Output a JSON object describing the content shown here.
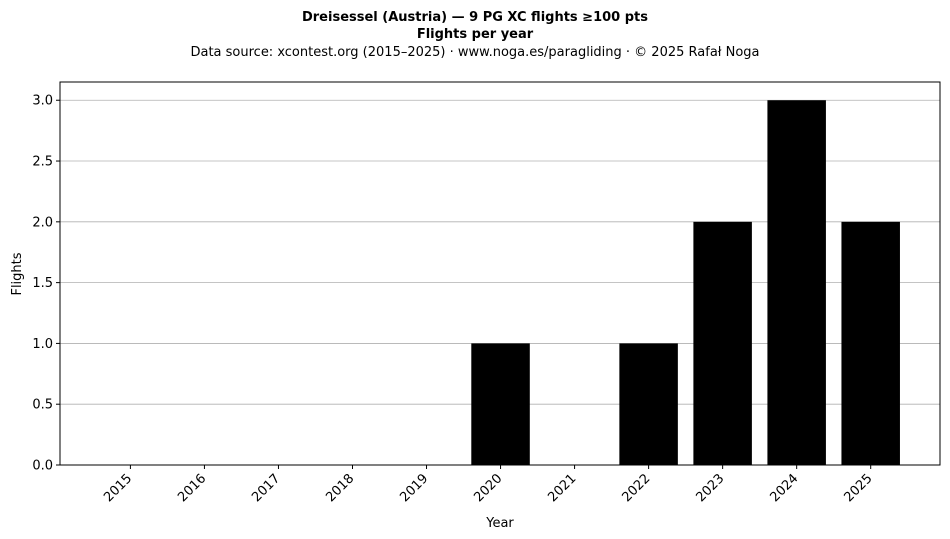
{
  "chart_data": {
    "type": "bar",
    "title": "Dreisessel (Austria)  —  9 PG XC flights ≥100 pts",
    "subtitle": "Flights per year",
    "source_line": "Data source: xcontest.org (2015–2025)  ·  www.noga.es/paragliding  ·  © 2025 Rafał Noga",
    "xlabel": "Year",
    "ylabel": "Flights",
    "categories": [
      "2015",
      "2016",
      "2017",
      "2018",
      "2019",
      "2020",
      "2021",
      "2022",
      "2023",
      "2024",
      "2025"
    ],
    "values": [
      0,
      0,
      0,
      0,
      0,
      1,
      0,
      1,
      2,
      3,
      2
    ],
    "ylim": [
      0,
      3.15
    ],
    "yticks": [
      "0.0",
      "0.5",
      "1.0",
      "1.5",
      "2.0",
      "2.5",
      "3.0"
    ],
    "ytick_values": [
      0,
      0.5,
      1,
      1.5,
      2,
      2.5,
      3
    ],
    "grid": "y",
    "bar_color": "#000000"
  }
}
